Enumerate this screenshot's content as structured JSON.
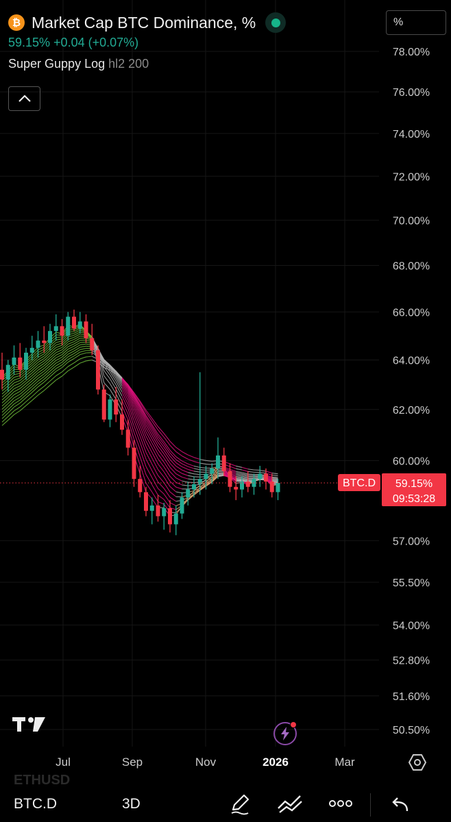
{
  "header": {
    "coin_symbol": "₿",
    "title": "Market Cap BTC Dominance, %",
    "price_line": "59.15%  +0.04 (+0.07%)",
    "indicator_name": "Super Guppy Log",
    "indicator_params": "hl2 200",
    "unit_label": "%"
  },
  "price_tag": {
    "symbol": "BTC.D",
    "value": "59.15%",
    "countdown": "09:53:28"
  },
  "toolbar": {
    "ghost_symbol": "ETHUSD",
    "symbol": "BTC.D",
    "interval": "3D"
  },
  "icons": [
    "bitcoin-icon",
    "live-indicator-icon",
    "chevron-up-icon",
    "tradingview-logo-icon",
    "lightning-icon",
    "settings-hex-icon",
    "pencil-icon",
    "trend-lines-icon",
    "more-icon",
    "undo-icon"
  ],
  "colors": {
    "background": "#000000",
    "up": "#22ab94",
    "down": "#f23645",
    "guppy_fast_bull": "#6ebd3a",
    "guppy_fast_bear": "#e0107e",
    "guppy_neutral": "#b0b0b0",
    "axis_text": "#cccccc"
  },
  "chart_data": {
    "type": "candlestick",
    "interval": "3D",
    "y_scale": "log",
    "grid": true,
    "y_ticks": [
      "78.00%",
      "76.00%",
      "74.00%",
      "72.00%",
      "70.00%",
      "68.00%",
      "66.00%",
      "64.00%",
      "62.00%",
      "60.00%",
      "57.00%",
      "55.50%",
      "54.00%",
      "52.80%",
      "51.60%",
      "50.50%"
    ],
    "x_ticks": [
      "Jul",
      "Sep",
      "Nov",
      "2026",
      "Mar"
    ],
    "last_value": 59.15,
    "ohlc": [
      [
        63.6,
        64.3,
        62.8,
        63.2
      ],
      [
        63.2,
        64.0,
        62.7,
        63.8
      ],
      [
        63.8,
        64.6,
        63.4,
        64.1
      ],
      [
        64.1,
        64.7,
        63.3,
        63.6
      ],
      [
        63.6,
        64.5,
        63.2,
        64.3
      ],
      [
        64.3,
        65.0,
        64.0,
        64.5
      ],
      [
        64.5,
        65.2,
        64.1,
        64.8
      ],
      [
        64.8,
        65.4,
        64.3,
        64.7
      ],
      [
        64.7,
        65.5,
        64.4,
        65.2
      ],
      [
        65.2,
        65.9,
        64.8,
        65.4
      ],
      [
        65.4,
        65.7,
        64.6,
        65.0
      ],
      [
        65.0,
        66.0,
        64.8,
        65.8
      ],
      [
        65.8,
        66.1,
        65.2,
        65.3
      ],
      [
        65.3,
        66.0,
        65.1,
        65.6
      ],
      [
        65.6,
        65.9,
        64.7,
        64.9
      ],
      [
        64.9,
        65.5,
        64.2,
        64.4
      ],
      [
        64.4,
        64.6,
        62.6,
        62.8
      ],
      [
        62.8,
        63.0,
        61.5,
        61.6
      ],
      [
        61.6,
        62.6,
        61.3,
        62.4
      ],
      [
        62.4,
        62.9,
        61.5,
        61.8
      ],
      [
        61.8,
        62.4,
        61.0,
        61.2
      ],
      [
        61.2,
        61.6,
        60.2,
        60.5
      ],
      [
        60.5,
        60.8,
        59.0,
        59.3
      ],
      [
        59.3,
        59.8,
        58.6,
        58.8
      ],
      [
        58.8,
        59.0,
        57.9,
        58.1
      ],
      [
        58.1,
        58.6,
        57.6,
        58.3
      ],
      [
        58.3,
        58.7,
        57.7,
        57.9
      ],
      [
        57.9,
        58.4,
        57.4,
        58.2
      ],
      [
        58.2,
        58.5,
        57.3,
        57.6
      ],
      [
        57.6,
        58.3,
        57.2,
        58.0
      ],
      [
        58.0,
        58.8,
        57.8,
        58.6
      ],
      [
        58.6,
        59.2,
        58.3,
        58.9
      ],
      [
        58.9,
        59.4,
        58.6,
        59.1
      ],
      [
        59.1,
        63.5,
        58.7,
        59.3
      ],
      [
        59.3,
        59.8,
        58.9,
        59.5
      ],
      [
        59.5,
        59.9,
        59.1,
        59.7
      ],
      [
        59.7,
        60.9,
        59.3,
        60.2
      ],
      [
        60.2,
        60.5,
        59.4,
        59.6
      ],
      [
        59.6,
        59.9,
        58.8,
        59.0
      ],
      [
        59.0,
        59.4,
        58.5,
        58.9
      ],
      [
        58.9,
        59.4,
        58.6,
        59.2
      ],
      [
        59.2,
        59.6,
        58.8,
        59.0
      ],
      [
        59.0,
        59.5,
        58.7,
        59.3
      ],
      [
        59.3,
        59.8,
        59.0,
        59.5
      ],
      [
        59.5,
        59.7,
        58.9,
        59.2
      ],
      [
        59.2,
        59.5,
        58.6,
        58.8
      ],
      [
        58.8,
        59.3,
        58.5,
        59.15
      ]
    ]
  }
}
